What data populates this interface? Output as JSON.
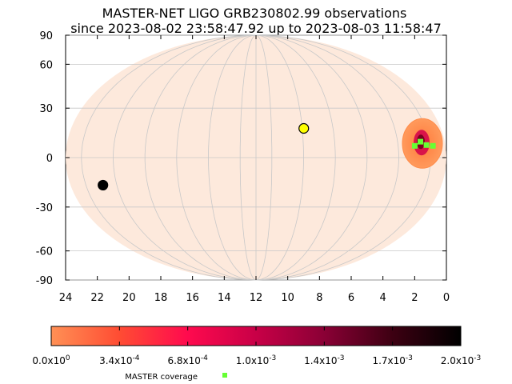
{
  "chart_data": {
    "type": "scatter",
    "title": "MASTER-NET LIGO GRB230802.99 observations",
    "subtitle": "since 2023-08-02 23:58:47.92 up to 2023-08-03 11:58:47",
    "projection": "mollweide",
    "xlim": [
      24,
      0
    ],
    "ylim": [
      -90,
      90
    ],
    "x_ticks": [
      "24",
      "22",
      "20",
      "18",
      "16",
      "14",
      "12",
      "10",
      "8",
      "6",
      "4",
      "2",
      "0"
    ],
    "x_tick_values": [
      24,
      22,
      20,
      18,
      16,
      14,
      12,
      10,
      8,
      6,
      4,
      2,
      0
    ],
    "y_ticks": [
      "90",
      "60",
      "30",
      "0",
      "-30",
      "-60",
      "-90"
    ],
    "y_tick_values": [
      90,
      60,
      30,
      0,
      -30,
      -60,
      -90
    ],
    "grid": true,
    "sky_color": "#fde9dc",
    "probability_region": {
      "ra_h": 1.5,
      "dec": 8,
      "outer_color": "#ff8c4a",
      "inner_color": "#d2004a",
      "core_color": "#7a0020"
    },
    "markers": [
      {
        "ra_h": 8.9,
        "dec": 17.5,
        "color": "#ffff00"
      },
      {
        "ra_h": 21.9,
        "dec": -16.5,
        "color": "#000000"
      }
    ],
    "coverage": {
      "name": "MASTER coverage",
      "color": "#66ff33",
      "points": [
        {
          "ra_h": 1.95,
          "dec": 7
        },
        {
          "ra_h": 1.55,
          "dec": 9.5
        },
        {
          "ra_h": 1.2,
          "dec": 7.5
        },
        {
          "ra_h": 0.8,
          "dec": 7
        }
      ]
    },
    "colorbar": {
      "min": 0.0,
      "max": 0.002,
      "labels": [
        "0.0x10",
        "3.4x10",
        "6.8x10",
        "1.0x10",
        "1.4x10",
        "1.7x10",
        "2.0x10"
      ],
      "exponents": [
        "0",
        "-4",
        "-4",
        "-3",
        "-3",
        "-3",
        "-3"
      ],
      "colors": [
        "#ff9055",
        "#ff4c33",
        "#ff0a4e",
        "#c80047",
        "#8a0035",
        "#3d0012",
        "#000000"
      ]
    }
  }
}
